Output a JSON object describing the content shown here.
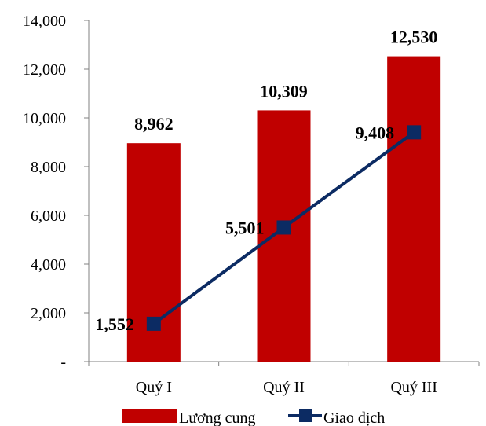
{
  "chart_data": {
    "type": "bar",
    "categories": [
      "Quý I",
      "Quý II",
      "Quý III"
    ],
    "series": [
      {
        "name": "Lương cung",
        "type": "bar",
        "values": [
          8962,
          10309,
          12530
        ],
        "labels": [
          "8,962",
          "10,309",
          "12,530"
        ],
        "color": "#c00000"
      },
      {
        "name": "Giao dịch",
        "type": "line",
        "values": [
          1552,
          5501,
          9408
        ],
        "labels": [
          "1,552",
          "5,501",
          "9,408"
        ],
        "color": "#0c2b63",
        "marker": "square"
      }
    ],
    "ylim": [
      0,
      14000
    ],
    "yticks": [
      0,
      2000,
      4000,
      6000,
      8000,
      10000,
      12000,
      14000
    ],
    "ytick_labels": [
      "-",
      "2,000",
      "4,000",
      "6,000",
      "8,000",
      "10,000",
      "12,000",
      "14,000"
    ],
    "grid": false,
    "legend_position": "bottom"
  }
}
